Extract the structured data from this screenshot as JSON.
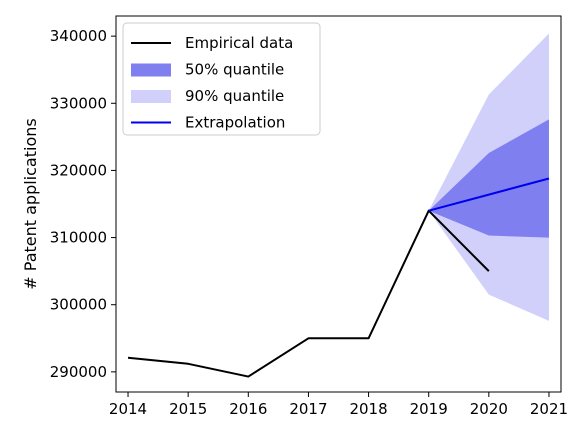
{
  "chart_data": {
    "type": "line",
    "title": "",
    "xlabel": "",
    "ylabel": "# Patent applications",
    "xlim": [
      2013.8,
      2021.2
    ],
    "ylim": [
      287000,
      343000
    ],
    "x_ticks": [
      2014,
      2015,
      2016,
      2017,
      2018,
      2019,
      2020,
      2021
    ],
    "y_ticks": [
      290000,
      300000,
      310000,
      320000,
      330000,
      340000
    ],
    "x_tick_labels": [
      "2014",
      "2015",
      "2016",
      "2017",
      "2018",
      "2019",
      "2020",
      "2021"
    ],
    "y_tick_labels": [
      "290000",
      "300000",
      "310000",
      "320000",
      "330000",
      "340000"
    ],
    "grid": false,
    "legend_position": "upper-left",
    "series": [
      {
        "name": "Empirical data",
        "kind": "line",
        "color": "#000000",
        "x": [
          2014,
          2015,
          2016,
          2017,
          2018,
          2019,
          2020
        ],
        "y": [
          292100,
          291200,
          289300,
          295000,
          295000,
          314000,
          305000
        ]
      },
      {
        "name": "50% quantile",
        "kind": "band",
        "color": "#7f7ff0",
        "x": [
          2019,
          2020,
          2021
        ],
        "lower": [
          314000,
          310300,
          310000
        ],
        "upper": [
          314000,
          322600,
          327600
        ]
      },
      {
        "name": "90% quantile",
        "kind": "band",
        "color": "#d0d0fa",
        "x": [
          2019,
          2020,
          2021
        ],
        "lower": [
          314000,
          301500,
          297600
        ],
        "upper": [
          314000,
          331300,
          340400
        ]
      },
      {
        "name": "Extrapolation",
        "kind": "line",
        "color": "#0000ee",
        "x": [
          2019,
          2020,
          2021
        ],
        "y": [
          314000,
          316400,
          318800
        ]
      }
    ]
  }
}
